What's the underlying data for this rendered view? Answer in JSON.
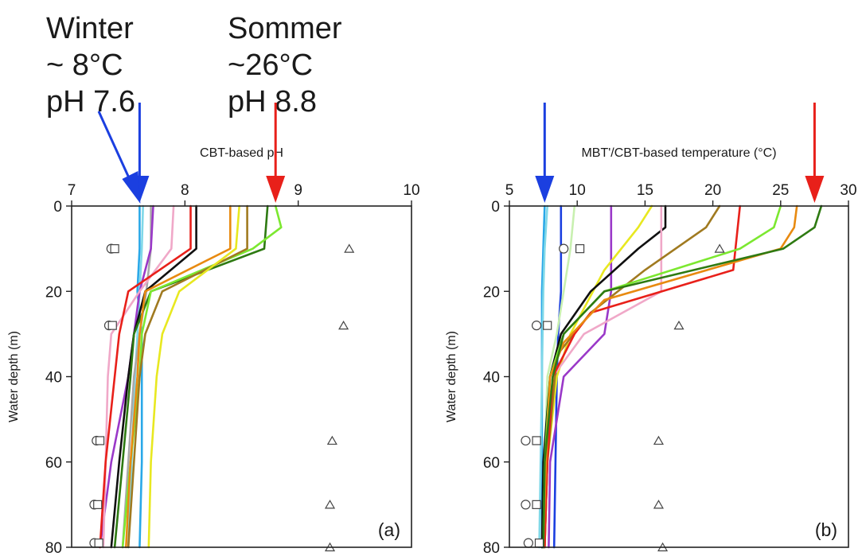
{
  "annotations": {
    "winter": {
      "lines": [
        "Winter",
        "~ 8°C",
        "pH 7.6"
      ],
      "arrow_color": "#1b3fe0"
    },
    "summer": {
      "lines": [
        "Sommer",
        "~26°C",
        "pH 8.8"
      ],
      "arrow_color": "#e8201a"
    }
  },
  "chart_data": [
    {
      "type": "line",
      "panel_label": "(a)",
      "xlabel": "CBT-based pH",
      "ylabel": "Water depth (m)",
      "xlim": [
        7,
        10
      ],
      "ylim": [
        80,
        0
      ],
      "xticks": [
        7,
        8,
        9,
        10
      ],
      "yticks": [
        0,
        20,
        40,
        60,
        80
      ],
      "arrows": [
        {
          "x": 7.6,
          "color": "#1b3fe0"
        },
        {
          "x": 8.8,
          "color": "#e8201a"
        }
      ],
      "series": [
        {
          "color": "#29a8e8",
          "points": [
            [
              7.6,
              0
            ],
            [
              7.6,
              10
            ],
            [
              7.58,
              20
            ],
            [
              7.62,
              30
            ],
            [
              7.62,
              40
            ],
            [
              7.62,
              60
            ],
            [
              7.6,
              80
            ]
          ]
        },
        {
          "color": "#80d8e8",
          "points": [
            [
              7.63,
              0
            ],
            [
              7.62,
              10
            ],
            [
              7.6,
              20
            ],
            [
              7.58,
              30
            ],
            [
              7.56,
              40
            ],
            [
              7.53,
              60
            ],
            [
              7.5,
              80
            ]
          ]
        },
        {
          "color": "#a9a9a9",
          "points": [
            [
              7.7,
              0
            ],
            [
              7.7,
              10
            ],
            [
              7.66,
              20
            ],
            [
              7.6,
              30
            ],
            [
              7.55,
              40
            ],
            [
              7.5,
              60
            ],
            [
              7.45,
              80
            ]
          ]
        },
        {
          "color": "#9a38c8",
          "points": [
            [
              7.72,
              0
            ],
            [
              7.7,
              10
            ],
            [
              7.6,
              20
            ],
            [
              7.55,
              30
            ],
            [
              7.5,
              40
            ],
            [
              7.35,
              60
            ],
            [
              7.25,
              80
            ]
          ]
        },
        {
          "color": "#f0a8c8",
          "points": [
            [
              7.9,
              0
            ],
            [
              7.88,
              10
            ],
            [
              7.6,
              20
            ],
            [
              7.35,
              30
            ],
            [
              7.32,
              40
            ],
            [
              7.3,
              60
            ],
            [
              7.28,
              80
            ]
          ]
        },
        {
          "color": "#e8201a",
          "points": [
            [
              8.05,
              0
            ],
            [
              8.05,
              10
            ],
            [
              7.5,
              20
            ],
            [
              7.42,
              30
            ],
            [
              7.38,
              40
            ],
            [
              7.3,
              60
            ],
            [
              7.25,
              80
            ]
          ]
        },
        {
          "color": "#101010",
          "points": [
            [
              8.1,
              0
            ],
            [
              8.1,
              10
            ],
            [
              7.65,
              20
            ],
            [
              7.55,
              30
            ],
            [
              7.5,
              40
            ],
            [
              7.42,
              60
            ],
            [
              7.35,
              80
            ]
          ]
        },
        {
          "color": "#2e7a12",
          "points": [
            [
              8.73,
              0
            ],
            [
              8.7,
              10
            ],
            [
              7.7,
              20
            ],
            [
              7.55,
              30
            ],
            [
              7.52,
              40
            ],
            [
              7.45,
              60
            ],
            [
              7.38,
              80
            ]
          ]
        },
        {
          "color": "#7ce830",
          "points": [
            [
              8.8,
              0
            ],
            [
              8.85,
              5
            ],
            [
              8.6,
              10
            ],
            [
              7.7,
              20
            ],
            [
              7.62,
              30
            ],
            [
              7.6,
              40
            ],
            [
              7.52,
              60
            ],
            [
              7.45,
              80
            ]
          ]
        },
        {
          "color": "#e88a10",
          "points": [
            [
              8.4,
              0
            ],
            [
              8.4,
              10
            ],
            [
              7.65,
              20
            ],
            [
              7.6,
              30
            ],
            [
              7.58,
              40
            ],
            [
              7.52,
              60
            ],
            [
              7.48,
              80
            ]
          ]
        },
        {
          "color": "#a07a20",
          "points": [
            [
              8.55,
              0
            ],
            [
              8.55,
              10
            ],
            [
              7.8,
              20
            ],
            [
              7.65,
              30
            ],
            [
              7.6,
              40
            ],
            [
              7.55,
              60
            ],
            [
              7.5,
              80
            ]
          ]
        },
        {
          "color": "#e8e820",
          "points": [
            [
              8.48,
              0
            ],
            [
              8.45,
              10
            ],
            [
              7.95,
              20
            ],
            [
              7.8,
              30
            ],
            [
              7.75,
              40
            ],
            [
              7.7,
              60
            ],
            [
              7.68,
              80
            ]
          ]
        }
      ],
      "markers": {
        "circles": [
          [
            7.35,
            10
          ],
          [
            7.33,
            28
          ],
          [
            7.22,
            55
          ],
          [
            7.2,
            70
          ],
          [
            7.2,
            79
          ]
        ],
        "squares": [
          [
            7.38,
            10
          ],
          [
            7.36,
            28
          ],
          [
            7.25,
            55
          ],
          [
            7.23,
            70
          ],
          [
            7.24,
            79
          ]
        ],
        "triangles": [
          [
            9.45,
            10
          ],
          [
            9.4,
            28
          ],
          [
            9.3,
            55
          ],
          [
            9.28,
            70
          ],
          [
            9.28,
            80
          ]
        ]
      }
    },
    {
      "type": "line",
      "panel_label": "(b)",
      "xlabel": "MBT'/CBT-based temperature (°C)",
      "ylabel": "Water depth (m)",
      "xlim": [
        5,
        30
      ],
      "ylim": [
        80,
        0
      ],
      "xticks": [
        5,
        10,
        15,
        20,
        25,
        30
      ],
      "yticks": [
        0,
        20,
        40,
        60,
        80
      ],
      "arrows": [
        {
          "x": 7.6,
          "color": "#1b3fe0"
        },
        {
          "x": 27.5,
          "color": "#e8201a"
        }
      ],
      "series": [
        {
          "color": "#29a8e8",
          "points": [
            [
              7.6,
              0
            ],
            [
              7.5,
              10
            ],
            [
              7.4,
              20
            ],
            [
              7.4,
              40
            ],
            [
              7.4,
              60
            ],
            [
              7.4,
              80
            ]
          ]
        },
        {
          "color": "#80d8e8",
          "points": [
            [
              7.8,
              0
            ],
            [
              7.6,
              10
            ],
            [
              7.5,
              20
            ],
            [
              7.4,
              40
            ],
            [
              7.3,
              60
            ],
            [
              7.2,
              80
            ]
          ]
        },
        {
          "color": "#1b3fe0",
          "points": [
            [
              8.8,
              0
            ],
            [
              8.8,
              20
            ],
            [
              8.6,
              30
            ],
            [
              8.5,
              40
            ],
            [
              8.4,
              60
            ],
            [
              8.3,
              80
            ]
          ]
        },
        {
          "color": "#c8f0b0",
          "points": [
            [
              9.8,
              0
            ],
            [
              9.5,
              10
            ],
            [
              9,
              20
            ],
            [
              8.5,
              30
            ],
            [
              7.8,
              40
            ],
            [
              7.6,
              60
            ],
            [
              7.5,
              80
            ]
          ]
        },
        {
          "color": "#9a38c8",
          "points": [
            [
              12.5,
              0
            ],
            [
              12.5,
              20
            ],
            [
              12,
              30
            ],
            [
              9,
              40
            ],
            [
              8,
              60
            ],
            [
              7.9,
              80
            ]
          ]
        },
        {
          "color": "#e8e820",
          "points": [
            [
              15.5,
              0
            ],
            [
              14.5,
              5
            ],
            [
              12,
              15
            ],
            [
              9.5,
              30
            ],
            [
              8.5,
              40
            ],
            [
              7.8,
              60
            ],
            [
              7.6,
              80
            ]
          ]
        },
        {
          "color": "#101010",
          "points": [
            [
              16.5,
              0
            ],
            [
              16.5,
              5
            ],
            [
              14.5,
              10
            ],
            [
              11,
              20
            ],
            [
              8.8,
              30
            ],
            [
              8,
              40
            ],
            [
              7.5,
              60
            ],
            [
              7.4,
              80
            ]
          ]
        },
        {
          "color": "#f0a8c8",
          "points": [
            [
              16.2,
              0
            ],
            [
              16.2,
              20
            ],
            [
              10.5,
              30
            ],
            [
              8.2,
              40
            ],
            [
              7.8,
              60
            ],
            [
              7.6,
              80
            ]
          ]
        },
        {
          "color": "#a07a20",
          "points": [
            [
              20.5,
              0
            ],
            [
              19.5,
              5
            ],
            [
              15,
              15
            ],
            [
              11,
              25
            ],
            [
              8.5,
              35
            ],
            [
              7.8,
              60
            ],
            [
              7.6,
              80
            ]
          ]
        },
        {
          "color": "#e8201a",
          "points": [
            [
              22,
              0
            ],
            [
              21.5,
              15
            ],
            [
              11,
              25
            ],
            [
              9.8,
              30
            ],
            [
              8.2,
              40
            ],
            [
              7.8,
              60
            ],
            [
              7.6,
              80
            ]
          ]
        },
        {
          "color": "#7ce830",
          "points": [
            [
              25,
              0
            ],
            [
              24.5,
              5
            ],
            [
              22,
              10
            ],
            [
              12,
              20
            ],
            [
              9,
              30
            ],
            [
              8,
              40
            ],
            [
              7.6,
              60
            ],
            [
              7.5,
              80
            ]
          ]
        },
        {
          "color": "#e88a10",
          "points": [
            [
              26.2,
              0
            ],
            [
              26,
              5
            ],
            [
              25,
              10
            ],
            [
              12,
              22
            ],
            [
              9,
              32
            ],
            [
              8,
              40
            ],
            [
              7.7,
              60
            ],
            [
              7.5,
              80
            ]
          ]
        },
        {
          "color": "#2e7a12",
          "points": [
            [
              28,
              0
            ],
            [
              27.5,
              5
            ],
            [
              25.2,
              10
            ],
            [
              12,
              20
            ],
            [
              9,
              30
            ],
            [
              8.2,
              40
            ],
            [
              7.6,
              60
            ],
            [
              7.5,
              80
            ]
          ]
        }
      ],
      "markers": {
        "circles": [
          [
            9,
            10
          ],
          [
            7,
            28
          ],
          [
            6.2,
            55
          ],
          [
            6.2,
            70
          ],
          [
            6.4,
            79
          ]
        ],
        "squares": [
          [
            10.2,
            10
          ],
          [
            7.8,
            28
          ],
          [
            7,
            55
          ],
          [
            7,
            70
          ],
          [
            7.2,
            79
          ]
        ],
        "triangles": [
          [
            20.5,
            10
          ],
          [
            17.5,
            28
          ],
          [
            16,
            55
          ],
          [
            16,
            70
          ],
          [
            16.3,
            80
          ]
        ]
      }
    }
  ]
}
